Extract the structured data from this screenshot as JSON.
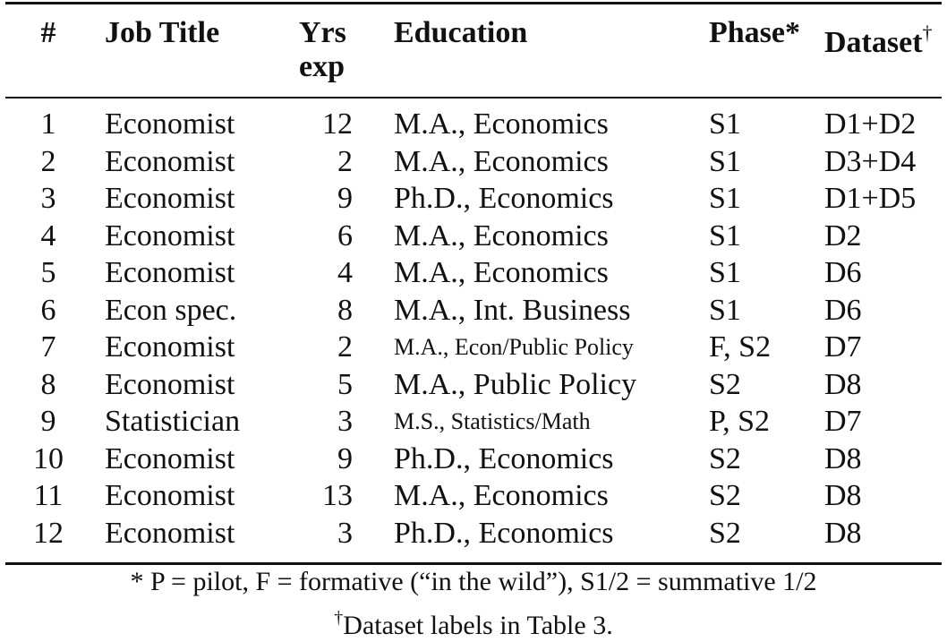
{
  "table": {
    "headers": {
      "num": "#",
      "job_title": "Job Title",
      "yrs_line1": "Yrs",
      "yrs_line2": "exp",
      "education": "Education",
      "phase": "Phase*",
      "dataset": "Dataset",
      "dataset_mark": "†"
    },
    "rows": [
      {
        "num": "1",
        "job": "Economist",
        "yrs": "12",
        "edu": "M.A., Economics",
        "phase": "S1",
        "dataset": "D1+D2"
      },
      {
        "num": "2",
        "job": "Economist",
        "yrs": "2",
        "edu": "M.A., Economics",
        "phase": "S1",
        "dataset": "D3+D4"
      },
      {
        "num": "3",
        "job": "Economist",
        "yrs": "9",
        "edu": "Ph.D., Economics",
        "phase": "S1",
        "dataset": "D1+D5"
      },
      {
        "num": "4",
        "job": "Economist",
        "yrs": "6",
        "edu": "M.A., Economics",
        "phase": "S1",
        "dataset": "D2"
      },
      {
        "num": "5",
        "job": "Economist",
        "yrs": "4",
        "edu": "M.A., Economics",
        "phase": "S1",
        "dataset": "D6"
      },
      {
        "num": "6",
        "job": "Econ spec.",
        "yrs": "8",
        "edu": "M.A., Int. Business",
        "phase": "S1",
        "dataset": "D6"
      },
      {
        "num": "7",
        "job": "Economist",
        "yrs": "2",
        "edu": "M.A., Econ/Public Policy",
        "phase": "F, S2",
        "dataset": "D7"
      },
      {
        "num": "8",
        "job": "Economist",
        "yrs": "5",
        "edu": "M.A., Public Policy",
        "phase": "S2",
        "dataset": "D8"
      },
      {
        "num": "9",
        "job": "Statistician",
        "yrs": "3",
        "edu": "M.S., Statistics/Math",
        "phase": "P, S2",
        "dataset": "D7"
      },
      {
        "num": "10",
        "job": "Economist",
        "yrs": "9",
        "edu": "Ph.D., Economics",
        "phase": "S2",
        "dataset": "D8"
      },
      {
        "num": "11",
        "job": "Economist",
        "yrs": "13",
        "edu": "M.A., Economics",
        "phase": "S2",
        "dataset": "D8"
      },
      {
        "num": "12",
        "job": "Economist",
        "yrs": "3",
        "edu": "Ph.D., Economics",
        "phase": "S2",
        "dataset": "D8"
      }
    ]
  },
  "footnotes": {
    "phase_note": "* P = pilot, F = formative (“in the wild”), S1/2 = summative 1/2",
    "dataset_mark": "†",
    "dataset_note": "Dataset labels in Table 3."
  }
}
